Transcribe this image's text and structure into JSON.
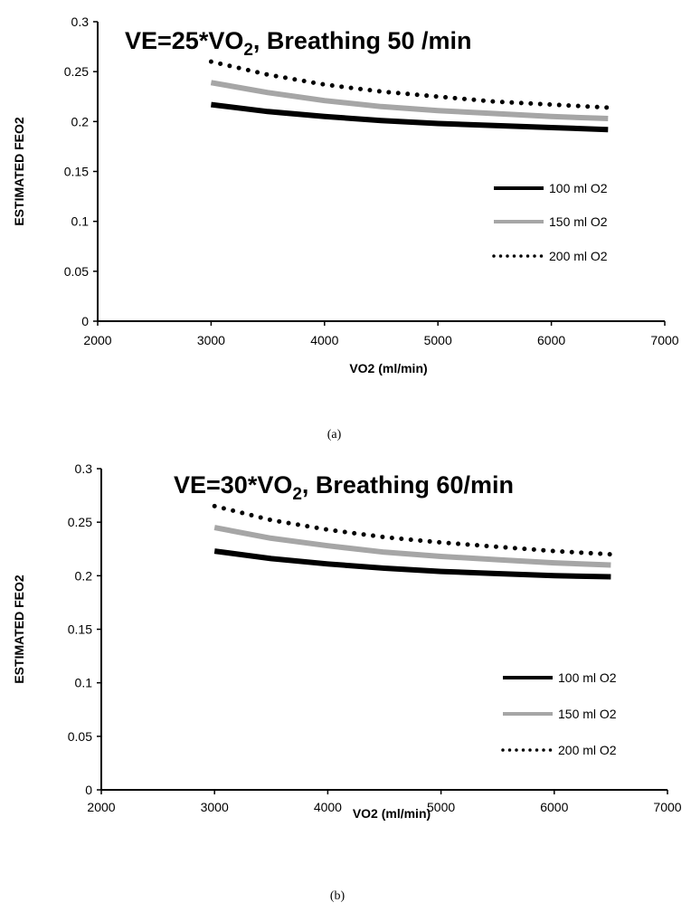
{
  "chart_data": [
    {
      "type": "line",
      "title_parts": {
        "pre": "VE=25*VO",
        "sub": "2",
        "post": ", Breathing 50 /min"
      },
      "xlabel": "VO2 (ml/min)",
      "ylabel": "ESTIMATED FEO2",
      "xlim": [
        2000,
        7000
      ],
      "ylim": [
        0,
        0.3
      ],
      "xticks": [
        2000,
        3000,
        4000,
        5000,
        6000,
        7000
      ],
      "yticks": [
        0,
        0.05,
        0.1,
        0.15,
        0.2,
        0.25,
        0.3
      ],
      "ytick_labels": [
        "0",
        "0.05",
        "0.1",
        "0.15",
        "0.2",
        "0.25",
        "0.3"
      ],
      "grid": false,
      "legend_position": "right",
      "caption": "(a)",
      "x": [
        3000,
        3500,
        4000,
        4500,
        5000,
        5500,
        6000,
        6500
      ],
      "series": [
        {
          "name": "100 ml O2",
          "style": "solid",
          "color": "#000000",
          "values": [
            0.217,
            0.21,
            0.205,
            0.201,
            0.198,
            0.196,
            0.194,
            0.192
          ]
        },
        {
          "name": "150 ml O2",
          "style": "solid",
          "color": "#a6a6a6",
          "values": [
            0.239,
            0.229,
            0.221,
            0.215,
            0.211,
            0.208,
            0.205,
            0.203
          ]
        },
        {
          "name": "200 ml O2",
          "style": "dotted",
          "color": "#000000",
          "values": [
            0.26,
            0.247,
            0.237,
            0.23,
            0.225,
            0.22,
            0.217,
            0.214
          ]
        }
      ]
    },
    {
      "type": "line",
      "title_parts": {
        "pre": "VE=30*VO",
        "sub": "2",
        "post": ", Breathing 60/min"
      },
      "xlabel": "VO2 (ml/min)",
      "ylabel": "ESTIMATED FEO2",
      "xlim": [
        2000,
        7000
      ],
      "ylim": [
        0,
        0.3
      ],
      "xticks": [
        2000,
        3000,
        4000,
        5000,
        6000,
        7000
      ],
      "yticks": [
        0,
        0.05,
        0.1,
        0.15,
        0.2,
        0.25,
        0.3
      ],
      "ytick_labels": [
        "0",
        "0.05",
        "0.1",
        "0.15",
        "0.2",
        "0.25",
        "0.3"
      ],
      "grid": false,
      "legend_position": "right",
      "caption": "(b)",
      "x": [
        3000,
        3500,
        4000,
        4500,
        5000,
        5500,
        6000,
        6500
      ],
      "series": [
        {
          "name": "100 ml O2",
          "style": "solid",
          "color": "#000000",
          "values": [
            0.223,
            0.216,
            0.211,
            0.207,
            0.204,
            0.202,
            0.2,
            0.199
          ]
        },
        {
          "name": "150 ml O2",
          "style": "solid",
          "color": "#a6a6a6",
          "values": [
            0.245,
            0.235,
            0.228,
            0.222,
            0.218,
            0.215,
            0.212,
            0.21
          ]
        },
        {
          "name": "200 ml O2",
          "style": "dotted",
          "color": "#000000",
          "values": [
            0.265,
            0.252,
            0.243,
            0.236,
            0.231,
            0.227,
            0.223,
            0.22
          ]
        }
      ]
    }
  ]
}
